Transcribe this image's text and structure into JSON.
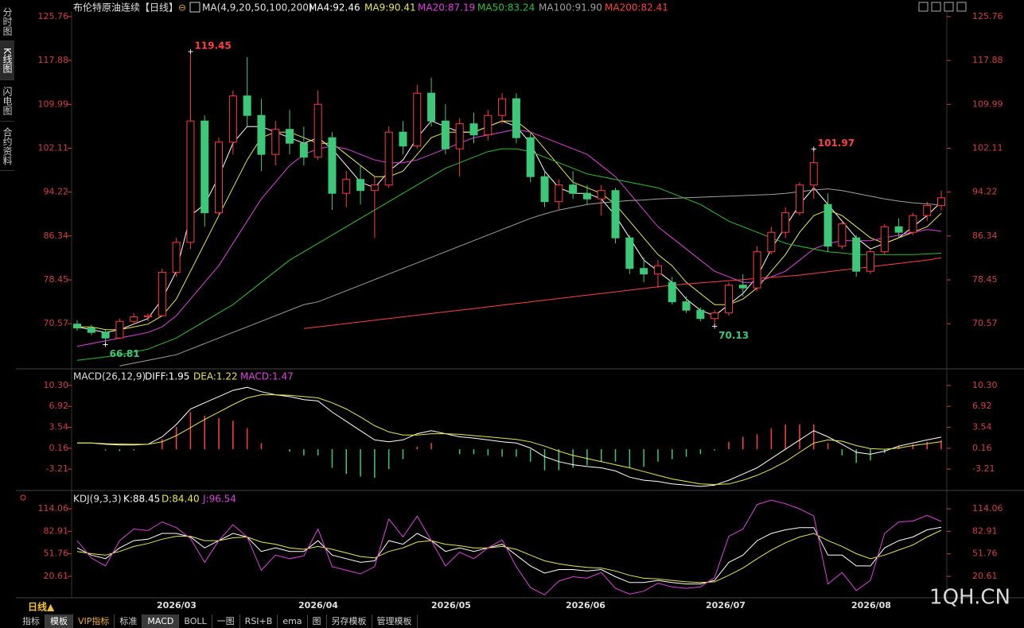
{
  "header": {
    "title": "布伦特原油连续【日线】"
  },
  "sidebar": [
    "分时图",
    "K线图",
    "闪电图",
    "合约资料"
  ],
  "period": "日线▲",
  "watermark": "1QH.CN",
  "toolbar": [
    "指标",
    "模板",
    "VIP指标",
    "标准",
    "MACD",
    "BOLL",
    "一图",
    "RSI+B",
    "ema",
    "图",
    "另存模板",
    "管理模板"
  ],
  "x_labels": [
    "2026/03",
    "2026/04",
    "2026/05",
    "2026/06",
    "2026/07",
    "2026/08"
  ],
  "chart_data": [
    {
      "type": "candlestick",
      "ma_label": "MA(4,9,20,50,100,200)",
      "ylim": [
        62.6,
        126.6
      ],
      "yticks": [
        125.76,
        117.88,
        109.99,
        102.11,
        94.22,
        86.34,
        78.45,
        70.57
      ],
      "up_color": "#ff3c3c",
      "down_color": "#3cc878",
      "candles": {
        "open": [
          70.5,
          69.8,
          69.0,
          68.0,
          71.0,
          71.8,
          72.0,
          79.8,
          85.2,
          107.0,
          90.5,
          103.2,
          111.5,
          108.0,
          101.0,
          105.5,
          103.0,
          100.5,
          104.0,
          94.0,
          96.5,
          94.5,
          95.5,
          105.0,
          102.5,
          112.0,
          107.0,
          102.0,
          106.5,
          104.5,
          108.0,
          111.0,
          104.0,
          97.0,
          92.5,
          95.5,
          94.0,
          93.0,
          94.5,
          86.0,
          80.5,
          79.5,
          78.0,
          74.5,
          73.0,
          71.5,
          72.5,
          77.5,
          77.0,
          83.5,
          87.0,
          90.5,
          95.5,
          92.0,
          84.5,
          86.0,
          80.0,
          83.5,
          88.0,
          87.0,
          90.0,
          91.8
        ],
        "high": [
          71.2,
          70.4,
          69.6,
          71.5,
          72.5,
          72.4,
          80.5,
          86.0,
          119.45,
          108.0,
          104.0,
          112.5,
          118.5,
          111.0,
          107.0,
          109.0,
          106.0,
          112.5,
          105.0,
          98.0,
          99.0,
          97.0,
          106.0,
          107.0,
          113.5,
          114.8,
          110.0,
          107.5,
          108.5,
          109.0,
          112.0,
          112.0,
          105.0,
          98.0,
          96.5,
          98.0,
          95.5,
          95.5,
          95.0,
          86.5,
          82.5,
          82.0,
          79.0,
          75.5,
          73.5,
          73.0,
          78.0,
          79.5,
          84.5,
          88.0,
          91.5,
          96.0,
          101.97,
          94.0,
          89.0,
          86.5,
          84.0,
          88.5,
          89.5,
          90.5,
          92.5,
          94.5
        ],
        "low": [
          69.3,
          68.5,
          66.81,
          67.8,
          70.5,
          71.0,
          71.8,
          79.0,
          84.0,
          88.0,
          90.0,
          101.0,
          106.0,
          98.0,
          99.0,
          101.0,
          99.0,
          100.0,
          91.0,
          91.5,
          92.0,
          86.0,
          95.0,
          101.0,
          102.0,
          106.0,
          101.0,
          97.0,
          103.0,
          103.5,
          106.5,
          103.0,
          96.0,
          91.5,
          91.0,
          93.0,
          92.0,
          90.0,
          85.0,
          79.5,
          78.0,
          77.0,
          74.0,
          72.5,
          71.0,
          70.13,
          72.0,
          75.5,
          76.5,
          83.0,
          86.0,
          90.0,
          93.0,
          83.5,
          84.0,
          79.0,
          79.5,
          83.0,
          86.0,
          86.5,
          89.0,
          91.0
        ],
        "close": [
          69.8,
          69.0,
          68.0,
          71.0,
          71.8,
          72.0,
          79.8,
          85.2,
          107.0,
          90.5,
          103.2,
          111.5,
          108.0,
          101.0,
          105.5,
          103.0,
          100.5,
          110.0,
          94.0,
          96.5,
          94.5,
          95.5,
          105.0,
          102.5,
          112.0,
          107.0,
          102.0,
          106.5,
          104.5,
          108.0,
          111.0,
          104.0,
          97.0,
          92.5,
          95.5,
          94.0,
          93.0,
          94.5,
          86.0,
          80.5,
          79.5,
          81.0,
          74.5,
          73.0,
          71.5,
          72.5,
          77.5,
          77.0,
          83.5,
          87.0,
          90.5,
          95.5,
          99.5,
          84.5,
          88.5,
          80.0,
          83.5,
          88.0,
          87.0,
          90.0,
          91.8,
          93.2
        ]
      },
      "price_labels": [
        119.45,
        66.81,
        101.97,
        70.13
      ],
      "series": [
        {
          "name": "MA4:92.46",
          "color": "#ffffff",
          "values": [
            70,
            69.5,
            69,
            69.5,
            70.5,
            71.5,
            75,
            80,
            90,
            92,
            97,
            103,
            106,
            106,
            105,
            104,
            103,
            104,
            102,
            99,
            96,
            95,
            98,
            100,
            104,
            107,
            106,
            105,
            105,
            106,
            107,
            106,
            103,
            98,
            95,
            94,
            94,
            93,
            90,
            86,
            82,
            80,
            78,
            75,
            73,
            72,
            74,
            76,
            79,
            84,
            88,
            92,
            95,
            92,
            89,
            86,
            84,
            85,
            86,
            88,
            90,
            92.46
          ]
        },
        {
          "name": "MA9:90.41",
          "color": "#e8e84a",
          "values": [
            70,
            70,
            69.5,
            69.5,
            70,
            70.5,
            72,
            75,
            80,
            85,
            90,
            95,
            100,
            104,
            105,
            105,
            104,
            103,
            103,
            101,
            99,
            97,
            97,
            98,
            101,
            104,
            105,
            105,
            105,
            106,
            107,
            107,
            105,
            102,
            99,
            96,
            95,
            94,
            92,
            89,
            86,
            83,
            81,
            78,
            76,
            74,
            74,
            75,
            77,
            80,
            83,
            87,
            90,
            91,
            90,
            88,
            86,
            85,
            86,
            87,
            88,
            90.41
          ]
        },
        {
          "name": "MA20:87.19",
          "color": "#e040e0",
          "values": [
            66.5,
            67,
            67.5,
            68,
            68.5,
            69,
            70,
            72,
            75,
            78,
            81,
            85,
            89,
            93,
            96,
            99,
            101,
            102,
            102.5,
            102,
            101,
            100,
            99.5,
            99.5,
            100,
            101,
            102,
            103,
            104,
            104.5,
            105,
            105.5,
            105,
            104,
            103,
            102,
            101,
            99,
            97,
            94,
            91,
            88,
            86,
            84,
            82,
            80,
            79,
            78,
            78,
            79,
            80,
            82,
            84,
            85,
            85.5,
            85.5,
            85.5,
            86,
            86.5,
            87,
            87.5,
            87.19
          ]
        },
        {
          "name": "MA50:83.24",
          "color": "#30c030",
          "values": [
            64,
            64.3,
            64.6,
            65,
            65.5,
            66,
            67,
            68,
            69.5,
            71,
            72.5,
            74,
            76,
            78,
            80,
            82,
            83.5,
            85,
            86.5,
            88,
            89.5,
            91,
            92.5,
            94,
            95.5,
            97,
            98.5,
            99.5,
            100.5,
            101.5,
            102,
            102,
            101.5,
            100.5,
            99.5,
            98.5,
            97.5,
            97,
            96.5,
            96,
            95.5,
            95,
            94,
            93,
            92,
            90.5,
            89,
            88,
            87,
            86,
            85,
            84.5,
            84,
            83.5,
            83.3,
            83,
            83,
            83,
            83,
            83,
            83.1,
            83.24
          ]
        },
        {
          "name": "MA100:91.90",
          "color": "#a0a0a0",
          "values": [
            null,
            null,
            null,
            63,
            63.5,
            64,
            64.5,
            65,
            66,
            67,
            68,
            69,
            70,
            71,
            72,
            73,
            74,
            74.5,
            75.5,
            76.5,
            77.5,
            78.5,
            79.5,
            80.5,
            81.5,
            82.5,
            83.5,
            84.5,
            85.5,
            86.5,
            87.5,
            88.5,
            89.5,
            90.3,
            91,
            91.5,
            92,
            92.3,
            92.5,
            92.7,
            92.8,
            93,
            93.1,
            93.2,
            93.3,
            93.4,
            93.5,
            93.6,
            93.7,
            93.8,
            94,
            94.3,
            94.6,
            94.8,
            94.5,
            94,
            93.5,
            93,
            92.6,
            92.3,
            92.1,
            91.9
          ]
        },
        {
          "name": "MA200:82.41",
          "color": "#ff4040",
          "values": [
            null,
            null,
            null,
            null,
            null,
            null,
            null,
            null,
            null,
            null,
            null,
            null,
            null,
            null,
            null,
            null,
            69.7,
            70,
            70.3,
            70.6,
            70.9,
            71.2,
            71.5,
            71.8,
            72.1,
            72.4,
            72.7,
            73,
            73.3,
            73.6,
            73.9,
            74.2,
            74.5,
            74.8,
            75.1,
            75.4,
            75.7,
            76,
            76.3,
            76.6,
            76.9,
            77.2,
            77.5,
            77.7,
            77.9,
            78.1,
            78.3,
            78.5,
            78.7,
            78.9,
            79.1,
            79.3,
            79.6,
            79.9,
            80.2,
            80.5,
            80.8,
            81.1,
            81.4,
            81.7,
            82,
            82.41
          ]
        }
      ]
    },
    {
      "type": "macd",
      "title": "MACD(26,12,9)",
      "ylim": [
        -6.4,
        12.85
      ],
      "yticks": [
        {
          "value": 10.3,
          "label": "10.30"
        },
        6.92,
        3.54,
        0.16,
        -3.21
      ],
      "series": [
        {
          "name": "DIFF:1.95",
          "color": "#ffffff",
          "values": [
            1,
            1,
            0.8,
            0.7,
            0.7,
            0.8,
            2,
            4,
            6.5,
            7.5,
            8.5,
            9.5,
            10,
            9.3,
            8.8,
            8.5,
            8,
            7.8,
            6,
            4.5,
            3,
            1.5,
            1.2,
            1.5,
            2.5,
            3,
            2.5,
            2,
            1.8,
            1.5,
            1.2,
            1,
            0.2,
            -1.2,
            -2,
            -2.5,
            -2.8,
            -3,
            -3.5,
            -4.5,
            -5,
            -5.2,
            -5.6,
            -5.8,
            -6,
            -5.8,
            -5,
            -4,
            -3,
            -1.5,
            0,
            1.5,
            3,
            2,
            0.8,
            -0.5,
            -0.8,
            -0.3,
            0.5,
            1,
            1.5,
            1.95
          ]
        },
        {
          "name": "DEA:1.22",
          "color": "#e8e84a",
          "values": [
            1,
            1,
            0.9,
            0.85,
            0.8,
            0.8,
            1.2,
            2.2,
            3.5,
            4.8,
            6,
            7.2,
            8.3,
            8.8,
            8.8,
            8.7,
            8.5,
            8.3,
            7.5,
            6.5,
            5.2,
            3.8,
            2.8,
            2.3,
            2.3,
            2.5,
            2.5,
            2.4,
            2.2,
            2,
            1.8,
            1.6,
            1.2,
            0.5,
            -0.3,
            -1,
            -1.5,
            -2,
            -2.5,
            -3,
            -3.6,
            -4.2,
            -4.8,
            -5.2,
            -5.6,
            -5.7,
            -5.6,
            -5,
            -4.2,
            -3.2,
            -2,
            -0.5,
            1,
            1.5,
            1.3,
            0.6,
            0.1,
            0,
            0.2,
            0.6,
            0.9,
            1.22
          ]
        }
      ],
      "histogram": {
        "name": "MACD:1.47",
        "color": "#e040e0",
        "up_color": "#ff4040",
        "down_color": "#3cc878",
        "values": [
          0,
          0,
          -0.2,
          -0.3,
          -0.2,
          0,
          1.6,
          3.6,
          6,
          5.4,
          5,
          4.6,
          3.4,
          1,
          0,
          -0.4,
          -1,
          -1,
          -3,
          -4,
          -4.4,
          -4.6,
          -3.2,
          -1.6,
          0.4,
          1,
          0,
          -0.8,
          -0.8,
          -1,
          -1.2,
          -1.2,
          -2,
          -3.4,
          -3.4,
          -3,
          -2.6,
          -2,
          -2,
          -3,
          -2.8,
          -2,
          -1.6,
          -1.2,
          -0.8,
          -0.2,
          1.2,
          2,
          2.4,
          3.4,
          4,
          4,
          4,
          1,
          -1,
          -2.2,
          -1.8,
          -0.6,
          0.6,
          0.8,
          1.2,
          1.47
        ]
      }
    },
    {
      "type": "kdj",
      "title": "KDJ(9,3,3)",
      "ylim": [
        -6.9,
        136.1
      ],
      "yticks": [
        114.06,
        82.91,
        51.76,
        20.61
      ],
      "series": [
        {
          "name": "K:88.45",
          "color": "#ffffff",
          "values": [
            60,
            50,
            45,
            60,
            70,
            72,
            80,
            80,
            75,
            60,
            70,
            80,
            75,
            55,
            60,
            55,
            55,
            70,
            50,
            45,
            40,
            42,
            70,
            65,
            80,
            70,
            55,
            60,
            55,
            60,
            65,
            50,
            35,
            25,
            30,
            30,
            28,
            30,
            20,
            12,
            12,
            15,
            12,
            10,
            10,
            15,
            40,
            50,
            70,
            80,
            85,
            88,
            88,
            50,
            50,
            35,
            35,
            60,
            70,
            75,
            85,
            88.45
          ]
        },
        {
          "name": "D:84.40",
          "color": "#e8e84a",
          "values": [
            55,
            52,
            50,
            55,
            62,
            66,
            72,
            76,
            76,
            70,
            70,
            74,
            75,
            68,
            65,
            60,
            58,
            62,
            58,
            53,
            48,
            46,
            55,
            60,
            68,
            70,
            65,
            63,
            60,
            60,
            62,
            58,
            50,
            42,
            38,
            35,
            33,
            32,
            28,
            22,
            18,
            17,
            15,
            13,
            12,
            13,
            22,
            32,
            45,
            57,
            67,
            75,
            80,
            70,
            62,
            52,
            45,
            50,
            57,
            64,
            75,
            84.4
          ]
        },
        {
          "name": "J:96.54",
          "color": "#e040e0",
          "values": [
            70,
            46,
            35,
            70,
            86,
            84,
            96,
            88,
            73,
            40,
            70,
            92,
            75,
            29,
            50,
            45,
            49,
            86,
            34,
            29,
            24,
            34,
            100,
            75,
            104,
            70,
            35,
            54,
            45,
            60,
            71,
            34,
            5,
            -5,
            14,
            20,
            18,
            26,
            4,
            -4,
            0,
            11,
            6,
            4,
            6,
            19,
            76,
            86,
            120,
            126,
            121,
            114,
            104,
            10,
            26,
            1,
            15,
            80,
            96,
            97,
            105,
            96.54
          ]
        }
      ]
    }
  ]
}
